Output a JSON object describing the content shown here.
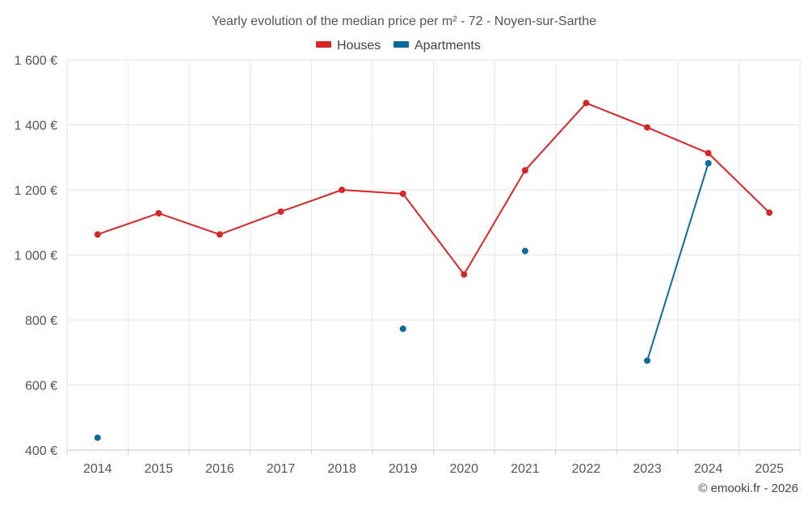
{
  "chart_data": {
    "type": "line",
    "title": "Yearly evolution of the median price per m² - 72 - Noyen-sur-Sarthe",
    "categories": [
      "2014",
      "2015",
      "2016",
      "2017",
      "2018",
      "2019",
      "2020",
      "2021",
      "2022",
      "2023",
      "2024",
      "2025"
    ],
    "y_ticks": [
      400,
      600,
      800,
      1000,
      1200,
      1400,
      1600
    ],
    "y_tick_labels": [
      "400 €",
      "600 €",
      "800 €",
      "1 000 €",
      "1 200 €",
      "1 400 €",
      "1 600 €"
    ],
    "ylim": [
      400,
      1600
    ],
    "grid": true,
    "legend_position": "top-center",
    "series": [
      {
        "name": "Houses",
        "color": "#d62728",
        "values": [
          1063,
          1128,
          1063,
          1133,
          1200,
          1188,
          940,
          1260,
          1467,
          1392,
          1313,
          1130
        ]
      },
      {
        "name": "Apartments",
        "color": "#0b6aa0",
        "values": [
          438,
          null,
          null,
          null,
          null,
          773,
          null,
          1012,
          null,
          675,
          1282,
          null
        ]
      }
    ],
    "credit": "© emooki.fr - 2026"
  }
}
